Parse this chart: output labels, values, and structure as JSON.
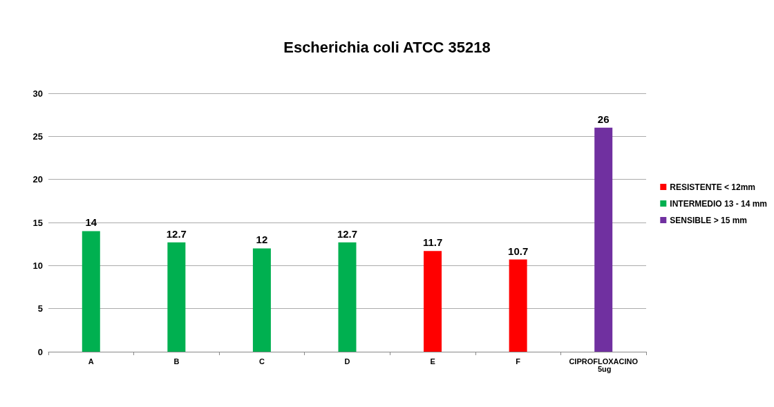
{
  "chart_data": {
    "type": "bar",
    "title": "Escherichia coli ATCC 35218",
    "categories": [
      "A",
      "B",
      "C",
      "D",
      "E",
      "F",
      "CIPROFLOXACINO 5ug"
    ],
    "stacked": true,
    "series": [
      {
        "name": "RESISTENTE < 12mm",
        "color": "#ff0000",
        "values": [
          null,
          null,
          null,
          null,
          11.7,
          10.7,
          null
        ]
      },
      {
        "name": "INTERMEDIO 13 - 14 mm",
        "color": "#00b050",
        "values": [
          14,
          12.7,
          12,
          12.7,
          null,
          null,
          null
        ]
      },
      {
        "name": "SENSIBLE > 15 mm",
        "color": "#7030a0",
        "values": [
          null,
          null,
          null,
          null,
          null,
          null,
          26
        ]
      }
    ],
    "ylim": [
      0,
      30
    ],
    "yticks": [
      0,
      5,
      10,
      15,
      20,
      25,
      30
    ],
    "grid": "y",
    "legend": "right",
    "data_labels": true
  }
}
